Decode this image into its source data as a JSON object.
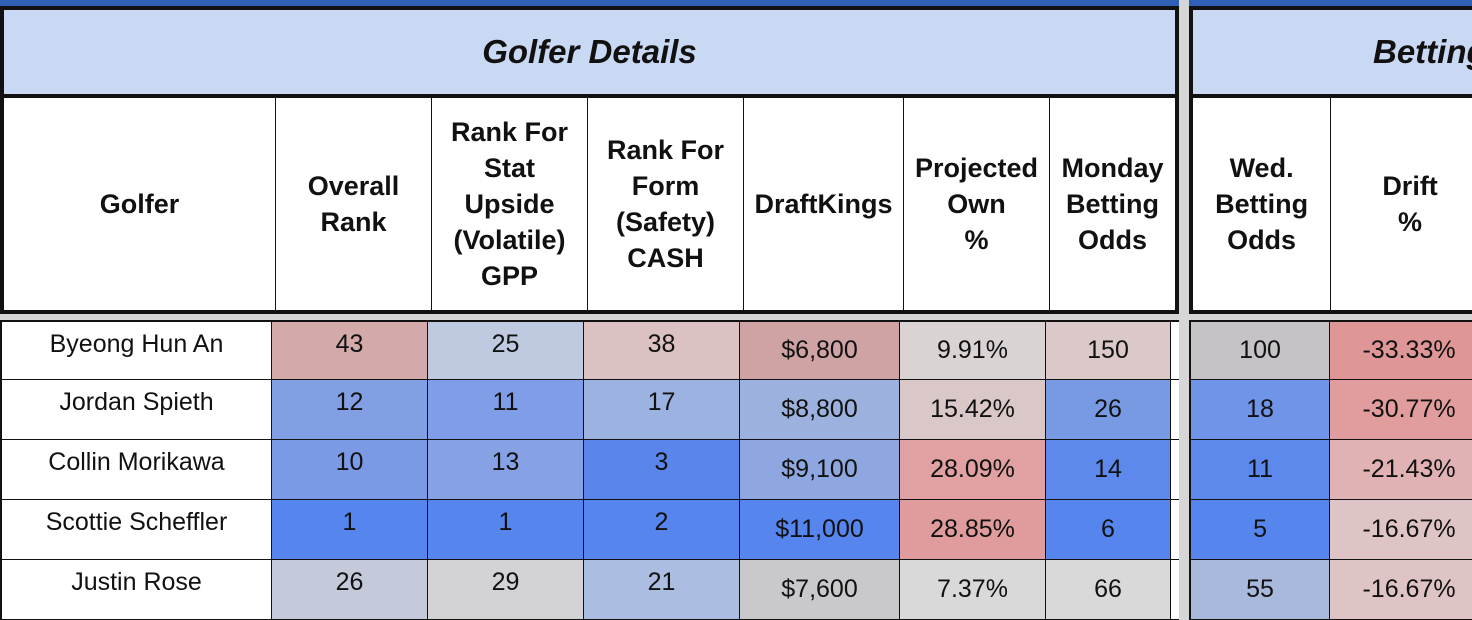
{
  "golfer_details": {
    "title": "Golfer Details",
    "headers": [
      "Golfer",
      "Overall\nRank",
      "Rank For\nStat\nUpside\n(Volatile)\nGPP",
      "Rank For\nForm\n(Safety)\nCASH",
      "DraftKings",
      "Projected\nOwn\n%",
      "Monday\nBetting\nOdds"
    ]
  },
  "betting": {
    "title": "Betting",
    "headers": [
      "Wed.\nBetting\nOdds",
      "Drift\n%"
    ]
  },
  "rows": [
    {
      "golfer": "Byeong Hun An",
      "overall": "43",
      "gpp": "25",
      "cash": "38",
      "dk": "$6,800",
      "own": "9.91%",
      "mon": "150",
      "wed": "100",
      "drift": "-33.33%",
      "colors": [
        "#d4a9aa",
        "#bfcae0",
        "#dcc1c3",
        "#cfa2a3",
        "#d9d3d4",
        "#dbc8c9",
        "#c6c3c6",
        "#df9697"
      ]
    },
    {
      "golfer": "Jordan Spieth",
      "overall": "12",
      "gpp": "11",
      "cash": "17",
      "dk": "$8,800",
      "own": "15.42%",
      "mon": "26",
      "wed": "18",
      "drift": "-30.77%",
      "colors": [
        "#829fe3",
        "#809ee7",
        "#9cb3e2",
        "#9cb1de",
        "#dac7c8",
        "#789ae3",
        "#6f94e8",
        "#e19c9d"
      ]
    },
    {
      "golfer": "Collin Morikawa",
      "overall": "10",
      "gpp": "13",
      "cash": "3",
      "dk": "$9,100",
      "own": "28.09%",
      "mon": "14",
      "wed": "11",
      "drift": "-21.43%",
      "colors": [
        "#7b9ae6",
        "#86a2e5",
        "#5a86ec",
        "#8ea7e0",
        "#e1a0a1",
        "#5e89ec",
        "#5e89ec",
        "#e1b2b3"
      ]
    },
    {
      "golfer": "Scottie Scheffler",
      "overall": "1",
      "gpp": "1",
      "cash": "2",
      "dk": "$11,000",
      "own": "28.85%",
      "mon": "6",
      "wed": "5",
      "drift": "-16.67%",
      "colors": [
        "#5585ed",
        "#5585ed",
        "#5585ed",
        "#5585ed",
        "#e09c9d",
        "#5585ed",
        "#5585ed",
        "#dfc4c5"
      ]
    },
    {
      "golfer": "Justin Rose",
      "overall": "26",
      "gpp": "29",
      "cash": "21",
      "dk": "$7,600",
      "own": "7.37%",
      "mon": "66",
      "wed": "55",
      "drift": "-16.67%",
      "colors": [
        "#c5cadb",
        "#d3d3d6",
        "#abbde1",
        "#c9c9cc",
        "#d9d9da",
        "#d9d9da",
        "#a9b9db",
        "#dfc4c5"
      ]
    }
  ]
}
